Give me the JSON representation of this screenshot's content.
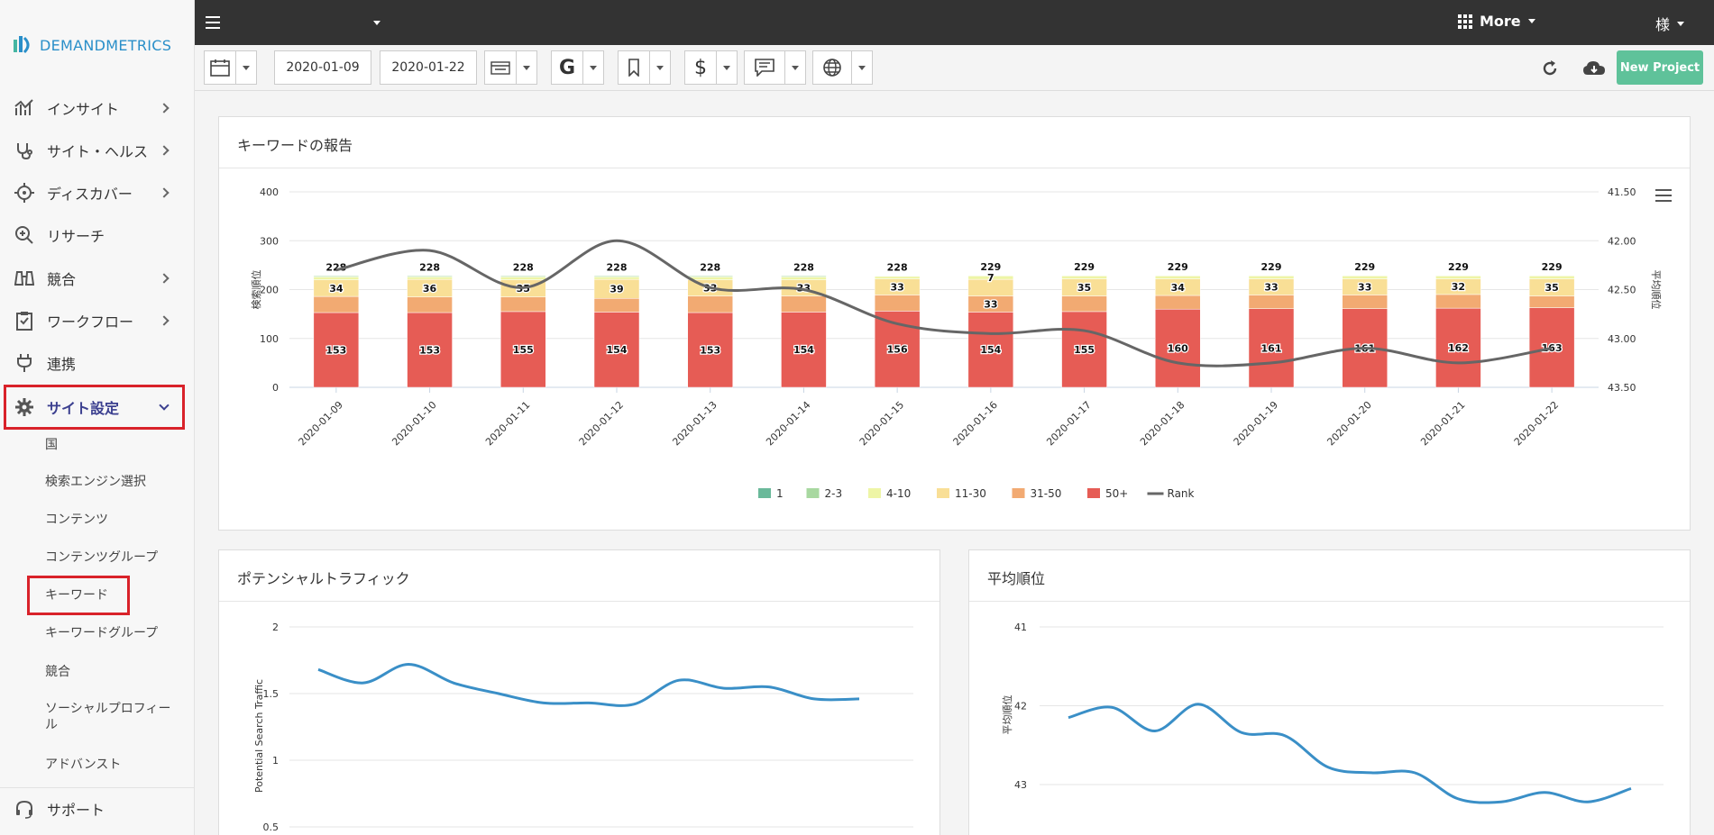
{
  "brand": "DEMANDMETRICS",
  "nav": [
    {
      "label": "インサイト",
      "icon": "chart-icon",
      "chevron": true
    },
    {
      "label": "サイト・ヘルス",
      "icon": "stethoscope-icon",
      "chevron": true
    },
    {
      "label": "ディスカバー",
      "icon": "crosshair-icon",
      "chevron": true
    },
    {
      "label": "リサーチ",
      "icon": "zoom-icon",
      "chevron": false
    },
    {
      "label": "競合",
      "icon": "binoculars-icon",
      "chevron": true
    },
    {
      "label": "ワークフロー",
      "icon": "clipboard-icon",
      "chevron": true
    },
    {
      "label": "連携",
      "icon": "plug-icon",
      "chevron": false
    },
    {
      "label": "サイト設定",
      "icon": "gear-icon",
      "chevron": true
    }
  ],
  "subnav": [
    "国",
    "検索エンジン選択",
    "コンテンツ",
    "コンテンツグループ",
    "キーワード",
    "キーワードグループ",
    "競合",
    "ソーシャルプロフィール",
    "アドバンスト"
  ],
  "support": "サポート",
  "topbar": {
    "more": "More",
    "user": "様"
  },
  "toolbar": {
    "date_from": "2020-01-09",
    "date_to": "2020-01-22",
    "new_project": "New Project"
  },
  "panels": {
    "keyword_report": "キーワードの報告",
    "potential_traffic": "ポテンシャルトラフィック",
    "avg_rank": "平均順位"
  },
  "colors": {
    "rank1": "#6ab99a",
    "rank2_3": "#a8d8a0",
    "rank4_10": "#eef5a6",
    "rank11_30": "#f9df96",
    "rank31_50": "#f2aa72",
    "rank50p": "#e65c55",
    "line": "#666666",
    "accent": "#5fc29a",
    "blue_line": "#3a8fc7"
  },
  "chart_data": [
    {
      "type": "bar",
      "title": "キーワードの報告",
      "ylabel": "検索順位",
      "y2label": "平均順位",
      "ylim": [
        0,
        400
      ],
      "y2lim": [
        41.5,
        43.5
      ],
      "yticks": [
        "0",
        "100",
        "200",
        "300",
        "400"
      ],
      "y2ticks": [
        "41.50",
        "42.00",
        "42.50",
        "43.00",
        "43.50"
      ],
      "categories": [
        "2020-01-09",
        "2020-01-10",
        "2020-01-11",
        "2020-01-12",
        "2020-01-13",
        "2020-01-14",
        "2020-01-15",
        "2020-01-16",
        "2020-01-17",
        "2020-01-18",
        "2020-01-19",
        "2020-01-20",
        "2020-01-21",
        "2020-01-22"
      ],
      "totals": [
        "228",
        "228",
        "228",
        "228",
        "228",
        "228",
        "228",
        "229",
        "229",
        "229",
        "229",
        "229",
        "229",
        "229"
      ],
      "series": [
        {
          "name": "1",
          "values": [
            0,
            0,
            0,
            0,
            0,
            0,
            0,
            0,
            0,
            0,
            0,
            0,
            0,
            0
          ]
        },
        {
          "name": "2-3",
          "values": [
            2,
            2,
            2,
            2,
            2,
            2,
            1,
            1,
            1,
            1,
            1,
            1,
            1,
            1
          ]
        },
        {
          "name": "4-10",
          "values": [
            6,
            5,
            6,
            5,
            6,
            6,
            5,
            7,
            6,
            6,
            6,
            6,
            6,
            6
          ]
        },
        {
          "name": "11-30",
          "values": [
            34,
            36,
            35,
            39,
            33,
            33,
            33,
            34,
            35,
            34,
            33,
            33,
            32,
            35
          ]
        },
        {
          "name": "31-50",
          "values": [
            33,
            32,
            30,
            28,
            34,
            33,
            33,
            33,
            32,
            28,
            28,
            28,
            28,
            24
          ]
        },
        {
          "name": "50+",
          "values": [
            153,
            153,
            155,
            154,
            153,
            154,
            156,
            154,
            155,
            160,
            161,
            161,
            162,
            163
          ]
        }
      ],
      "value_labels": [
        {
          "series": "50+",
          "values": [
            "153",
            "153",
            "155",
            "154",
            "153",
            "154",
            "156",
            "154",
            "155",
            "160",
            "161",
            "161",
            "162",
            "163"
          ]
        },
        {
          "series": "11-30",
          "values": [
            "34",
            "36",
            "35",
            "39",
            "33",
            "33",
            "33",
            "",
            "35",
            "34",
            "33",
            "33",
            "32",
            "35"
          ]
        }
      ],
      "extra_labels": [
        {
          "category": "2020-01-16",
          "series": "31-50",
          "value": "33"
        },
        {
          "category": "2020-01-16",
          "series": "4-10",
          "value": "7"
        }
      ],
      "line": {
        "name": "Rank",
        "values": [
          42.3,
          42.1,
          42.48,
          42.0,
          42.48,
          42.5,
          42.85,
          42.95,
          42.92,
          43.25,
          43.25,
          43.1,
          43.25,
          43.1
        ]
      },
      "legend": [
        "1",
        "2-3",
        "4-10",
        "11-30",
        "31-50",
        "50+",
        "Rank"
      ],
      "legend_position": "bottom"
    },
    {
      "type": "line",
      "title": "ポテンシャルトラフィック",
      "ylabel": "Potential Search Traffic",
      "ylim": [
        0.5,
        2
      ],
      "yticks": [
        "0.5",
        "1",
        "1.5",
        "2"
      ],
      "values": [
        1.68,
        1.58,
        1.72,
        1.58,
        1.5,
        1.43,
        1.43,
        1.42,
        1.6,
        1.54,
        1.55,
        1.46,
        1.46
      ]
    },
    {
      "type": "line",
      "title": "平均順位",
      "ylabel": "平均順位",
      "ylim": [
        41,
        43
      ],
      "yticks": [
        "41",
        "42",
        "43"
      ],
      "values": [
        42.15,
        42.02,
        42.32,
        41.98,
        42.34,
        42.38,
        42.78,
        42.85,
        42.85,
        43.18,
        43.22,
        43.1,
        43.22,
        43.05
      ]
    }
  ]
}
